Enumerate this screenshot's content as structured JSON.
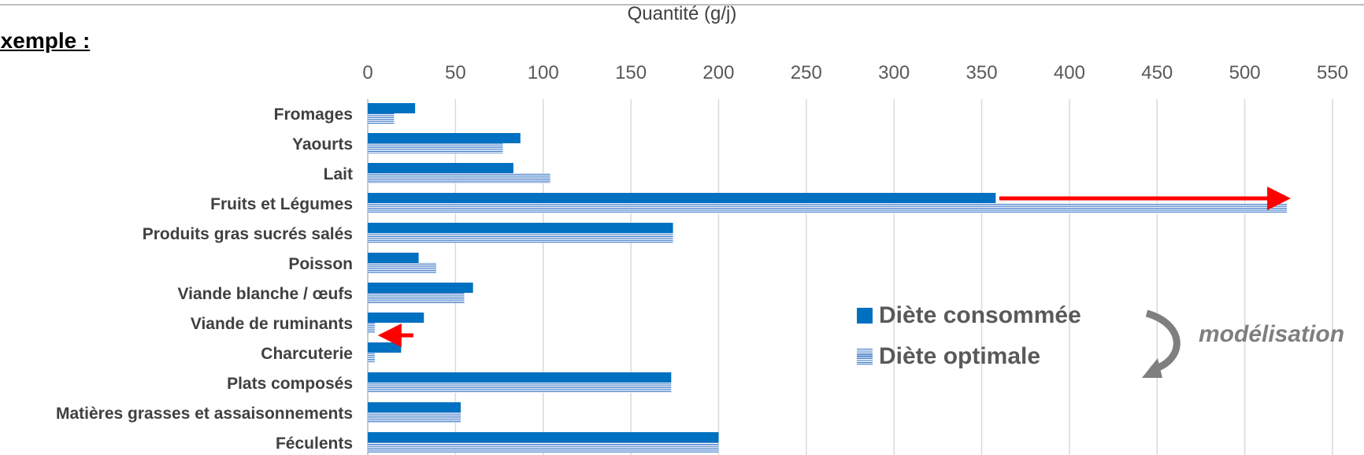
{
  "heading": "Exemple :",
  "chart_data": {
    "type": "bar",
    "orientation": "horizontal",
    "xlabel": "Quantité (g/j)",
    "xlim": [
      0,
      550
    ],
    "ticks": [
      0,
      50,
      100,
      150,
      200,
      250,
      300,
      350,
      400,
      450,
      500,
      550
    ],
    "grid": true,
    "categories": [
      "Fromages",
      "Yaourts",
      "Lait",
      "Fruits et Légumes",
      "Produits gras sucrés salés",
      "Poisson",
      "Viande blanche / œufs",
      "Viande de ruminants",
      "Charcuterie",
      "Plats composés",
      "Matières grasses et assaisonnements",
      "Féculents"
    ],
    "series": [
      {
        "name": "Diète consommée",
        "color": "#0070c0",
        "pattern": "solid",
        "values": [
          27,
          87,
          83,
          358,
          174,
          29,
          60,
          32,
          19,
          173,
          53,
          200
        ]
      },
      {
        "name": "Diète optimale",
        "color": "#2f6fc4",
        "pattern": "horizontal-lines",
        "values": [
          15,
          77,
          104,
          524,
          174,
          39,
          55,
          4,
          4,
          173,
          53,
          200
        ]
      }
    ],
    "annotations": {
      "arrows": [
        {
          "category": "Fruits et Légumes",
          "from": 360,
          "to": 524,
          "color": "#ff0000"
        },
        {
          "category": "Viande de ruminants",
          "from": 26,
          "to": 8,
          "color": "#ff0000"
        }
      ],
      "modelisation_label": "modélisation"
    },
    "legend_position": "bottom-right"
  }
}
